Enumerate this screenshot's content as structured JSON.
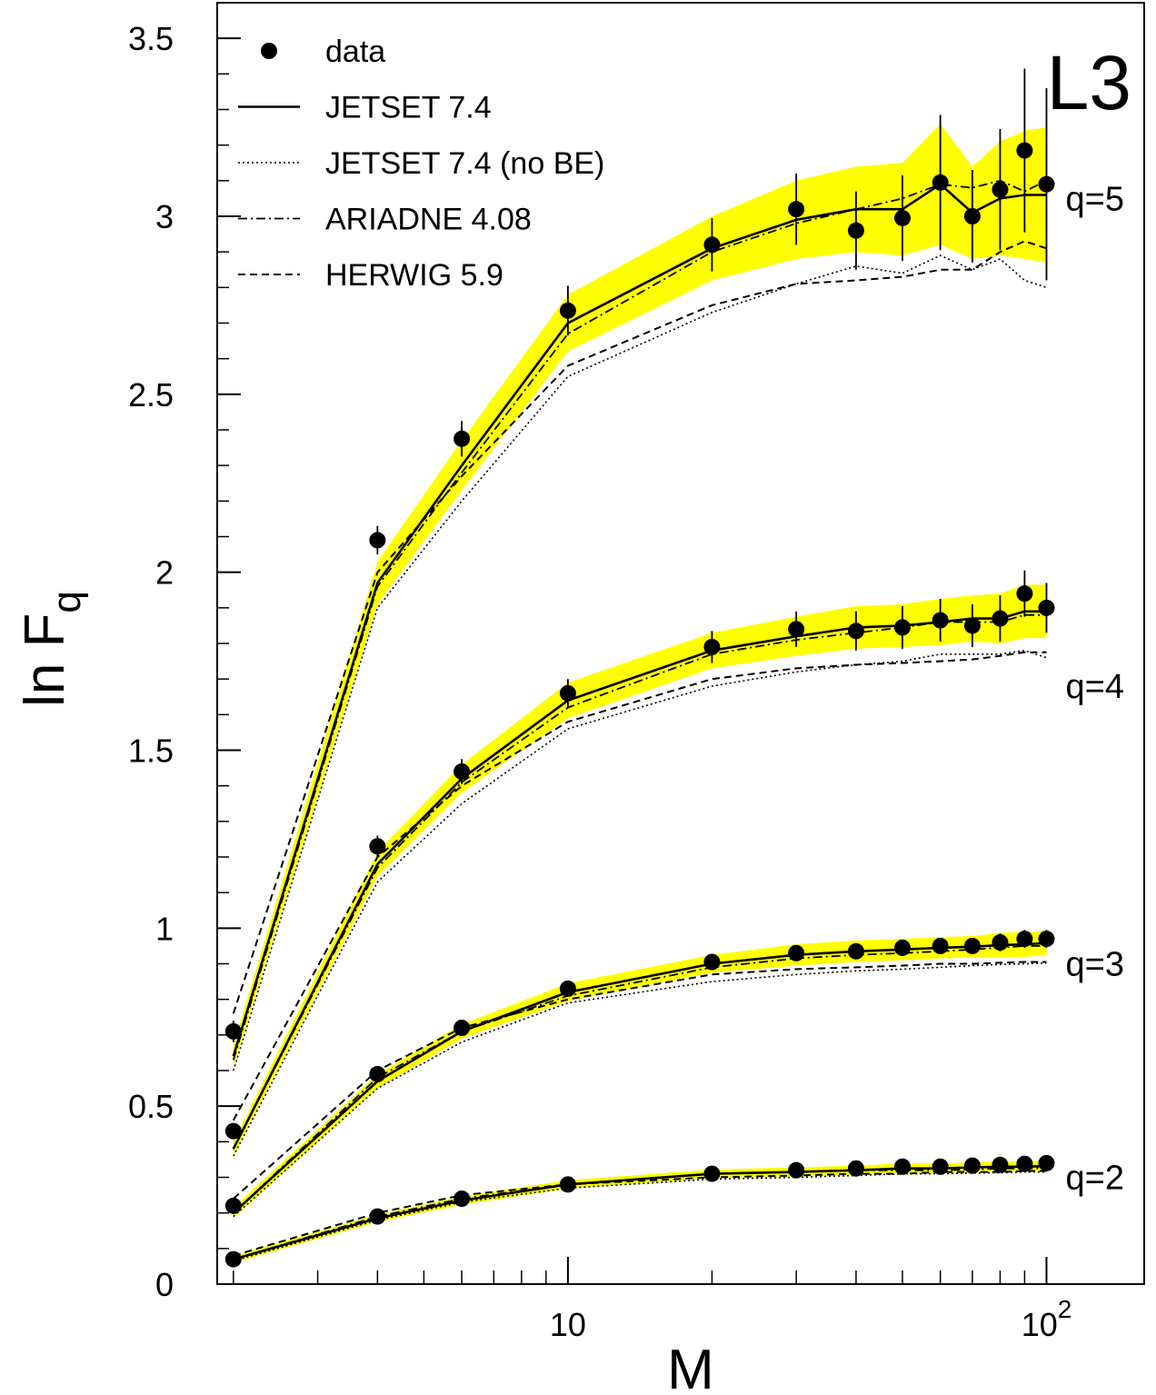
{
  "chart_data": {
    "type": "line",
    "logo": "L3",
    "xlabel": "M",
    "ylabel_main": "ln F",
    "ylabel_sub": "q",
    "x_scale": "log",
    "xlim": [
      1.85,
      160
    ],
    "ylim": [
      0,
      3.6
    ],
    "x_ticks": [
      {
        "value": 10,
        "label": "10",
        "sup": ""
      },
      {
        "value": 100,
        "label": "10",
        "sup": "2"
      }
    ],
    "y_ticks": [
      {
        "value": 0,
        "label": "0"
      },
      {
        "value": 0.5,
        "label": "0.5"
      },
      {
        "value": 1,
        "label": "1"
      },
      {
        "value": 1.5,
        "label": "1.5"
      },
      {
        "value": 2,
        "label": "2"
      },
      {
        "value": 2.5,
        "label": "2.5"
      },
      {
        "value": 3,
        "label": "3"
      },
      {
        "value": 3.5,
        "label": "3.5"
      }
    ],
    "legend": {
      "placement": "top-left",
      "entries": [
        {
          "label": "data",
          "style": "marker"
        },
        {
          "label": "JETSET 7.4",
          "style": "solid"
        },
        {
          "label": "JETSET 7.4 (no BE)",
          "style": "dotted"
        },
        {
          "label": "ARIADNE 4.08",
          "style": "dashdot"
        },
        {
          "label": "HERWIG 5.9",
          "style": "dashed"
        }
      ]
    },
    "x": [
      2,
      4,
      6,
      10,
      20,
      30,
      40,
      50,
      60,
      70,
      80,
      90,
      100
    ],
    "groups": [
      {
        "label": "q=2",
        "label_y": 0.3,
        "data": [
          0.07,
          0.19,
          0.24,
          0.28,
          0.31,
          0.32,
          0.325,
          0.33,
          0.33,
          0.333,
          0.335,
          0.338,
          0.34
        ],
        "err": [
          0.005,
          0.01,
          0.01,
          0.01,
          0.01,
          0.01,
          0.01,
          0.01,
          0.01,
          0.01,
          0.01,
          0.012,
          0.012
        ],
        "band": [
          0.01,
          0.01,
          0.012,
          0.012,
          0.012,
          0.013,
          0.013,
          0.014,
          0.014,
          0.014,
          0.015,
          0.015,
          0.015
        ],
        "jetset": [
          0.07,
          0.185,
          0.235,
          0.28,
          0.31,
          0.315,
          0.32,
          0.325,
          0.325,
          0.328,
          0.33,
          0.33,
          0.332
        ],
        "nobe": [
          0.065,
          0.18,
          0.23,
          0.27,
          0.295,
          0.3,
          0.305,
          0.31,
          0.31,
          0.312,
          0.313,
          0.315,
          0.315
        ],
        "ariadne": [
          0.07,
          0.19,
          0.24,
          0.28,
          0.31,
          0.315,
          0.32,
          0.32,
          0.32,
          0.322,
          0.325,
          0.325,
          0.326
        ],
        "herwig": [
          0.08,
          0.2,
          0.25,
          0.28,
          0.3,
          0.305,
          0.31,
          0.31,
          0.315,
          0.315,
          0.315,
          0.318,
          0.318
        ]
      },
      {
        "label": "q=3",
        "label_y": 0.9,
        "data": [
          0.22,
          0.59,
          0.72,
          0.83,
          0.905,
          0.93,
          0.935,
          0.945,
          0.95,
          0.95,
          0.96,
          0.97,
          0.97
        ],
        "err": [
          0.01,
          0.015,
          0.02,
          0.02,
          0.02,
          0.02,
          0.02,
          0.02,
          0.02,
          0.02,
          0.025,
          0.025,
          0.025
        ],
        "band": [
          0.015,
          0.02,
          0.02,
          0.025,
          0.025,
          0.03,
          0.03,
          0.03,
          0.03,
          0.03,
          0.035,
          0.035,
          0.035
        ],
        "jetset": [
          0.2,
          0.57,
          0.71,
          0.82,
          0.9,
          0.925,
          0.935,
          0.94,
          0.945,
          0.948,
          0.952,
          0.955,
          0.958
        ],
        "nobe": [
          0.19,
          0.55,
          0.68,
          0.79,
          0.85,
          0.87,
          0.88,
          0.885,
          0.89,
          0.895,
          0.898,
          0.9,
          0.902
        ],
        "ariadne": [
          0.2,
          0.58,
          0.71,
          0.81,
          0.89,
          0.915,
          0.925,
          0.93,
          0.935,
          0.94,
          0.945,
          0.95,
          0.95
        ],
        "herwig": [
          0.24,
          0.6,
          0.72,
          0.8,
          0.87,
          0.885,
          0.89,
          0.895,
          0.9,
          0.9,
          0.903,
          0.905,
          0.905
        ]
      },
      {
        "label": "q=4",
        "label_y": 1.68,
        "data": [
          0.43,
          1.23,
          1.44,
          1.66,
          1.79,
          1.84,
          1.835,
          1.845,
          1.865,
          1.85,
          1.87,
          1.94,
          1.9
        ],
        "err": [
          0.02,
          0.03,
          0.035,
          0.04,
          0.045,
          0.05,
          0.055,
          0.06,
          0.06,
          0.06,
          0.065,
          0.065,
          0.07
        ],
        "band": [
          0.02,
          0.035,
          0.04,
          0.05,
          0.05,
          0.055,
          0.06,
          0.06,
          0.065,
          0.065,
          0.07,
          0.075,
          0.075
        ],
        "jetset": [
          0.38,
          1.18,
          1.42,
          1.64,
          1.78,
          1.82,
          1.845,
          1.85,
          1.86,
          1.87,
          1.87,
          1.89,
          1.89
        ],
        "nobe": [
          0.36,
          1.13,
          1.35,
          1.56,
          1.68,
          1.72,
          1.74,
          1.75,
          1.77,
          1.77,
          1.77,
          1.78,
          1.76
        ],
        "ariadne": [
          0.38,
          1.17,
          1.41,
          1.62,
          1.77,
          1.81,
          1.83,
          1.845,
          1.86,
          1.86,
          1.86,
          1.88,
          1.88
        ],
        "herwig": [
          0.46,
          1.2,
          1.4,
          1.58,
          1.7,
          1.73,
          1.74,
          1.745,
          1.75,
          1.755,
          1.765,
          1.775,
          1.775
        ]
      },
      {
        "label": "q=5",
        "label_y": 3.05,
        "data": [
          0.71,
          2.09,
          2.375,
          2.735,
          2.92,
          3.02,
          2.96,
          2.995,
          3.095,
          3.0,
          3.075,
          3.185,
          3.09
        ],
        "err": [
          0.03,
          0.04,
          0.05,
          0.07,
          0.075,
          0.1,
          0.11,
          0.12,
          0.19,
          0.13,
          0.17,
          0.23,
          0.27
        ],
        "band": [
          0.03,
          0.06,
          0.07,
          0.08,
          0.09,
          0.11,
          0.12,
          0.13,
          0.17,
          0.13,
          0.16,
          0.18,
          0.19
        ],
        "jetset": [
          0.64,
          1.97,
          2.3,
          2.7,
          2.91,
          2.99,
          3.02,
          3.02,
          3.09,
          3.01,
          3.05,
          3.06,
          3.06
        ],
        "nobe": [
          0.6,
          1.9,
          2.2,
          2.55,
          2.73,
          2.81,
          2.86,
          2.84,
          2.89,
          2.85,
          2.88,
          2.82,
          2.8
        ],
        "ariadne": [
          0.63,
          1.96,
          2.28,
          2.67,
          2.9,
          2.98,
          3.02,
          3.05,
          3.09,
          3.08,
          3.1,
          3.07,
          3.1
        ],
        "herwig": [
          0.76,
          2.0,
          2.27,
          2.58,
          2.75,
          2.81,
          2.82,
          2.83,
          2.85,
          2.85,
          2.9,
          2.93,
          2.91
        ]
      }
    ],
    "colors": {
      "band": "#ffff00",
      "ink": "#000000",
      "background": "#ffffff"
    }
  }
}
